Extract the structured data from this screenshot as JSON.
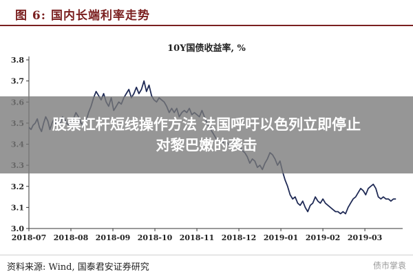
{
  "figure_label": "图 6:  国内长端利率走势",
  "overlay": {
    "line1": "股票杠杆短线操作方法 法国呼吁以色列立即停止",
    "line2": "对黎巴嫩的袭击"
  },
  "source_text": "资料来源:  Wind, 国泰君安证券研究",
  "watermark": "债市掌袁",
  "chart_data": {
    "type": "line",
    "title": "10Y国债收益率, %",
    "xlabel": "",
    "ylabel": "",
    "ylim": [
      3.0,
      3.8
    ],
    "yticks": [
      "3.0",
      "3.1",
      "3.2",
      "3.3",
      "3.4",
      "3.5",
      "3.6",
      "3.7",
      "3.8"
    ],
    "xticks": [
      "2018-07",
      "2018-08",
      "2018-09",
      "2018-10",
      "2018-11",
      "2018-12",
      "2019-01",
      "2019-02",
      "2019-03"
    ],
    "grid": false,
    "line_color": "#1f2a55",
    "series": [
      {
        "x": [
          0.0,
          0.05,
          0.1,
          0.15,
          0.2,
          0.25,
          0.3,
          0.35,
          0.4,
          0.45,
          0.5,
          0.55,
          0.6,
          0.65,
          0.7,
          0.75,
          0.8,
          0.85,
          0.9,
          0.95,
          1.0,
          1.06,
          1.12,
          1.18,
          1.24,
          1.3,
          1.36,
          1.42,
          1.48,
          1.54,
          1.6,
          1.66,
          1.72,
          1.78,
          1.84,
          1.9,
          1.96,
          2.02,
          2.08,
          2.14,
          2.2,
          2.26,
          2.32,
          2.38,
          2.44,
          2.5,
          2.56,
          2.62,
          2.68,
          2.74,
          2.8,
          2.86,
          2.92,
          2.98,
          3.04,
          3.1,
          3.16,
          3.22,
          3.28,
          3.34,
          3.4,
          3.46,
          3.52,
          3.58,
          3.64,
          3.7,
          3.76,
          3.82,
          3.88,
          3.94,
          4.0,
          4.06,
          4.12,
          4.18,
          4.24,
          4.3,
          4.36,
          4.42,
          4.48,
          4.54,
          4.6,
          4.66,
          4.72,
          4.78,
          4.84,
          4.9,
          4.96,
          5.02,
          5.08,
          5.14,
          5.2,
          5.26,
          5.32,
          5.38,
          5.44,
          5.5,
          5.56,
          5.62,
          5.68,
          5.74,
          5.8,
          5.86,
          5.92,
          5.98,
          6.04,
          6.1,
          6.16,
          6.22,
          6.28,
          6.34,
          6.4,
          6.46,
          6.52,
          6.58,
          6.64,
          6.7,
          6.76,
          6.82,
          6.88,
          6.94,
          7.0,
          7.06,
          7.12,
          7.18,
          7.24,
          7.3,
          7.36,
          7.42,
          7.48,
          7.54,
          7.6,
          7.66,
          7.72,
          7.78,
          7.84,
          7.9,
          7.96,
          8.02,
          8.08,
          8.14,
          8.2,
          8.26,
          8.32,
          8.38,
          8.44,
          8.5,
          8.56,
          8.62,
          8.68,
          8.74
        ],
        "y": [
          3.48,
          3.47,
          3.49,
          3.5,
          3.52,
          3.48,
          3.46,
          3.5,
          3.53,
          3.51,
          3.47,
          3.5,
          3.52,
          3.49,
          3.51,
          3.5,
          3.53,
          3.52,
          3.5,
          3.49,
          3.5,
          3.52,
          3.55,
          3.53,
          3.5,
          3.49,
          3.51,
          3.55,
          3.58,
          3.62,
          3.65,
          3.63,
          3.61,
          3.64,
          3.6,
          3.58,
          3.62,
          3.56,
          3.58,
          3.6,
          3.59,
          3.62,
          3.64,
          3.66,
          3.62,
          3.64,
          3.67,
          3.64,
          3.66,
          3.7,
          3.65,
          3.68,
          3.63,
          3.61,
          3.6,
          3.62,
          3.61,
          3.6,
          3.58,
          3.55,
          3.57,
          3.55,
          3.57,
          3.53,
          3.55,
          3.56,
          3.55,
          3.57,
          3.54,
          3.55,
          3.54,
          3.53,
          3.56,
          3.53,
          3.5,
          3.48,
          3.46,
          3.44,
          3.42,
          3.41,
          3.4,
          3.42,
          3.41,
          3.39,
          3.41,
          3.4,
          3.38,
          3.39,
          3.37,
          3.36,
          3.34,
          3.31,
          3.33,
          3.32,
          3.29,
          3.3,
          3.28,
          3.31,
          3.33,
          3.36,
          3.35,
          3.33,
          3.3,
          3.32,
          3.27,
          3.23,
          3.2,
          3.16,
          3.14,
          3.15,
          3.12,
          3.11,
          3.13,
          3.1,
          3.08,
          3.11,
          3.12,
          3.15,
          3.13,
          3.12,
          3.14,
          3.12,
          3.11,
          3.1,
          3.09,
          3.08,
          3.08,
          3.07,
          3.08,
          3.07,
          3.1,
          3.12,
          3.14,
          3.15,
          3.17,
          3.19,
          3.18,
          3.16,
          3.19,
          3.2,
          3.21,
          3.19,
          3.15,
          3.14,
          3.15,
          3.14,
          3.14,
          3.13,
          3.14,
          3.14
        ]
      }
    ]
  }
}
